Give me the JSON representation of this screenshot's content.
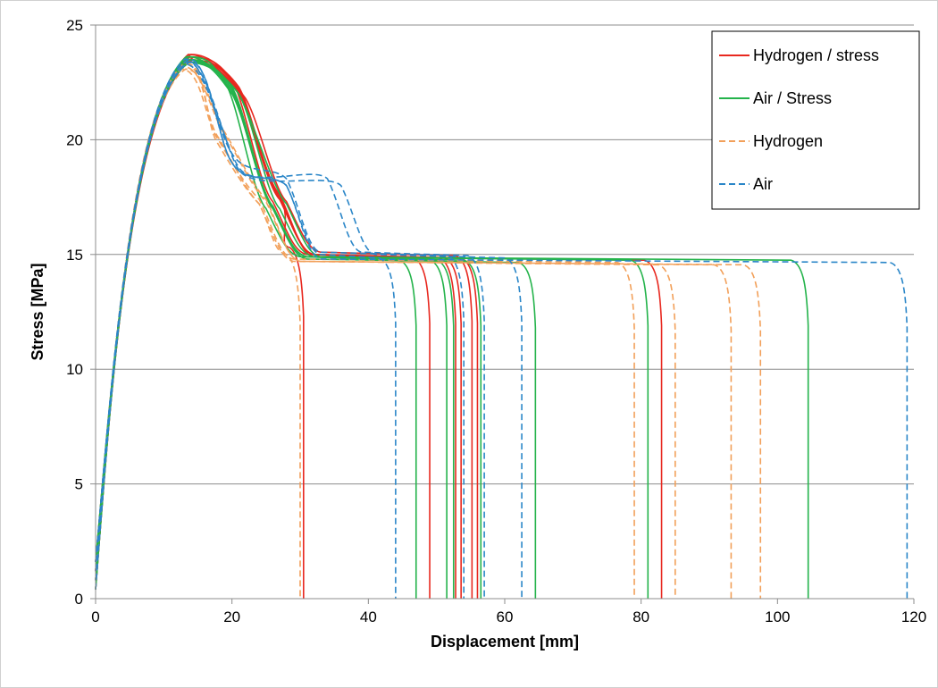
{
  "chart_data": {
    "type": "line",
    "title": "",
    "xlabel": "Displacement [mm]",
    "ylabel": "Stress [MPa]",
    "xlim": [
      0,
      120
    ],
    "ylim": [
      0,
      25
    ],
    "xticks": [
      0,
      20,
      40,
      60,
      80,
      100,
      120
    ],
    "yticks": [
      0,
      5,
      10,
      15,
      20,
      25
    ],
    "grid": {
      "horizontal": true,
      "vertical": false
    },
    "legend": "top-right",
    "legend_entries": [
      {
        "label": "Hydrogen / stress",
        "color": "#e8281f",
        "dash": "solid"
      },
      {
        "label": "Air / Stress",
        "color": "#24b34b",
        "dash": "solid"
      },
      {
        "label": "Hydrogen",
        "color": "#f2a05a",
        "dash": "dashed"
      },
      {
        "label": "Air",
        "color": "#2a86c8",
        "dash": "dashed"
      }
    ],
    "series": [
      {
        "group": 0,
        "failure_x": 30.5,
        "plateau": 15.3,
        "mid": [
          [
            21,
            22.0
          ],
          [
            27,
            17.6
          ]
        ]
      },
      {
        "group": 0,
        "failure_x": 49.0,
        "plateau": 15.0,
        "mid": [
          [
            20,
            22.6
          ],
          [
            26,
            17.3
          ]
        ]
      },
      {
        "group": 0,
        "failure_x": 52.8,
        "plateau": 15.0,
        "mid": [
          [
            21,
            22.2
          ],
          [
            27,
            17.5
          ]
        ]
      },
      {
        "group": 0,
        "failure_x": 53.6,
        "plateau": 15.0,
        "mid": [
          [
            21,
            22.3
          ],
          [
            27,
            17.4
          ]
        ]
      },
      {
        "group": 0,
        "failure_x": 55.2,
        "plateau": 15.1,
        "mid": [
          [
            22,
            21.8
          ],
          [
            28,
            17.3
          ]
        ]
      },
      {
        "group": 0,
        "failure_x": 56.0,
        "plateau": 15.0,
        "mid": [
          [
            21,
            22.0
          ],
          [
            27,
            17.4
          ]
        ]
      },
      {
        "group": 0,
        "failure_x": 83.0,
        "plateau": 14.9,
        "mid": [
          [
            21,
            22.1
          ],
          [
            27,
            17.6
          ]
        ]
      },
      {
        "group": 1,
        "failure_x": 47.0,
        "plateau": 14.9,
        "mid": [
          [
            20,
            22.0
          ],
          [
            26,
            17.0
          ]
        ]
      },
      {
        "group": 1,
        "failure_x": 51.5,
        "plateau": 14.9,
        "mid": [
          [
            19,
            22.5
          ],
          [
            25,
            17.0
          ]
        ]
      },
      {
        "group": 1,
        "failure_x": 52.5,
        "plateau": 14.9,
        "mid": [
          [
            20,
            22.3
          ],
          [
            26,
            17.1
          ]
        ]
      },
      {
        "group": 1,
        "failure_x": 56.5,
        "plateau": 14.9,
        "mid": [
          [
            21,
            22.0
          ],
          [
            28,
            17.2
          ]
        ]
      },
      {
        "group": 1,
        "failure_x": 64.5,
        "plateau": 14.8,
        "mid": [
          [
            20,
            22.1
          ],
          [
            26,
            17.0
          ]
        ]
      },
      {
        "group": 1,
        "failure_x": 81.0,
        "plateau": 14.9,
        "mid": [
          [
            21,
            22.0
          ],
          [
            27,
            17.0
          ]
        ]
      },
      {
        "group": 1,
        "failure_x": 104.5,
        "plateau": 14.9,
        "mid": [
          [
            20,
            22.2
          ],
          [
            26,
            17.1
          ]
        ]
      },
      {
        "group": 2,
        "failure_x": 30.0,
        "plateau": 15.0,
        "mid": [
          [
            18,
            19.8
          ],
          [
            24,
            17.2
          ]
        ]
      },
      {
        "group": 2,
        "failure_x": 79.0,
        "plateau": 14.8,
        "mid": [
          [
            18,
            20.0
          ],
          [
            24,
            17.4
          ]
        ]
      },
      {
        "group": 2,
        "failure_x": 85.0,
        "plateau": 14.7,
        "mid": [
          [
            19,
            20.2
          ],
          [
            25,
            17.3
          ]
        ]
      },
      {
        "group": 2,
        "failure_x": 93.2,
        "plateau": 14.7,
        "mid": [
          [
            18,
            20.1
          ],
          [
            24,
            17.2
          ]
        ]
      },
      {
        "group": 2,
        "failure_x": 97.5,
        "plateau": 14.7,
        "mid": [
          [
            19,
            20.3
          ],
          [
            25,
            17.4
          ]
        ]
      },
      {
        "group": 3,
        "failure_x": 44.0,
        "plateau": 15.0,
        "mid": [
          [
            20,
            19.0
          ],
          [
            28,
            18.0
          ]
        ]
      },
      {
        "group": 3,
        "failure_x": 54.0,
        "plateau": 15.1,
        "mid": [
          [
            20,
            19.4
          ],
          [
            28,
            18.3
          ]
        ]
      },
      {
        "group": 3,
        "failure_x": 57.0,
        "plateau": 15.1,
        "mid": [
          [
            21,
            18.8
          ],
          [
            34,
            18.3
          ]
        ]
      },
      {
        "group": 3,
        "failure_x": 62.5,
        "plateau": 15.0,
        "mid": [
          [
            21,
            18.7
          ],
          [
            36,
            18.0
          ]
        ]
      },
      {
        "group": 3,
        "failure_x": 119.0,
        "plateau": 14.8,
        "mid": [
          [
            20,
            19.0
          ],
          [
            28,
            18.0
          ]
        ]
      }
    ]
  }
}
